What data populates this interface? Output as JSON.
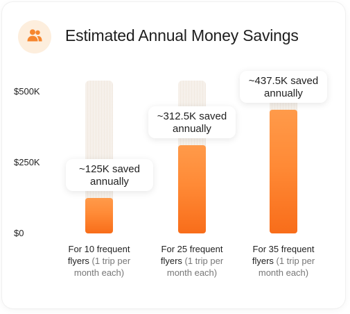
{
  "header": {
    "title": "Estimated Annual Money Savings",
    "icon": "users-icon",
    "icon_color": "#f6862e",
    "badge_color": "#fdeedd"
  },
  "chart_data": {
    "type": "bar",
    "title": "Estimated Annual Money Savings",
    "xlabel": "",
    "ylabel": "",
    "ylim": [
      0,
      500000
    ],
    "yticks": [
      {
        "value": 0,
        "label": "$0"
      },
      {
        "value": 250000,
        "label": "$250K"
      },
      {
        "value": 500000,
        "label": "$500K"
      }
    ],
    "bar_color": "#f8791f",
    "track_color": "#f4eee7",
    "categories": [
      {
        "main": "For 10 frequent flyers",
        "note": "(1 trip per month each)"
      },
      {
        "main": "For 25 frequent flyers",
        "note": "(1 trip per month each)"
      },
      {
        "main": "For 35 frequent flyers",
        "note": "(1 trip per month each)"
      }
    ],
    "values": [
      125000,
      312500,
      437500
    ],
    "data_labels": [
      {
        "line1": "~125K saved",
        "line2": "annually"
      },
      {
        "line1": "~312.5K saved",
        "line2": "annually"
      },
      {
        "line1": "~437.5K saved",
        "line2": "annually"
      }
    ],
    "grid": false,
    "legend": "none"
  }
}
